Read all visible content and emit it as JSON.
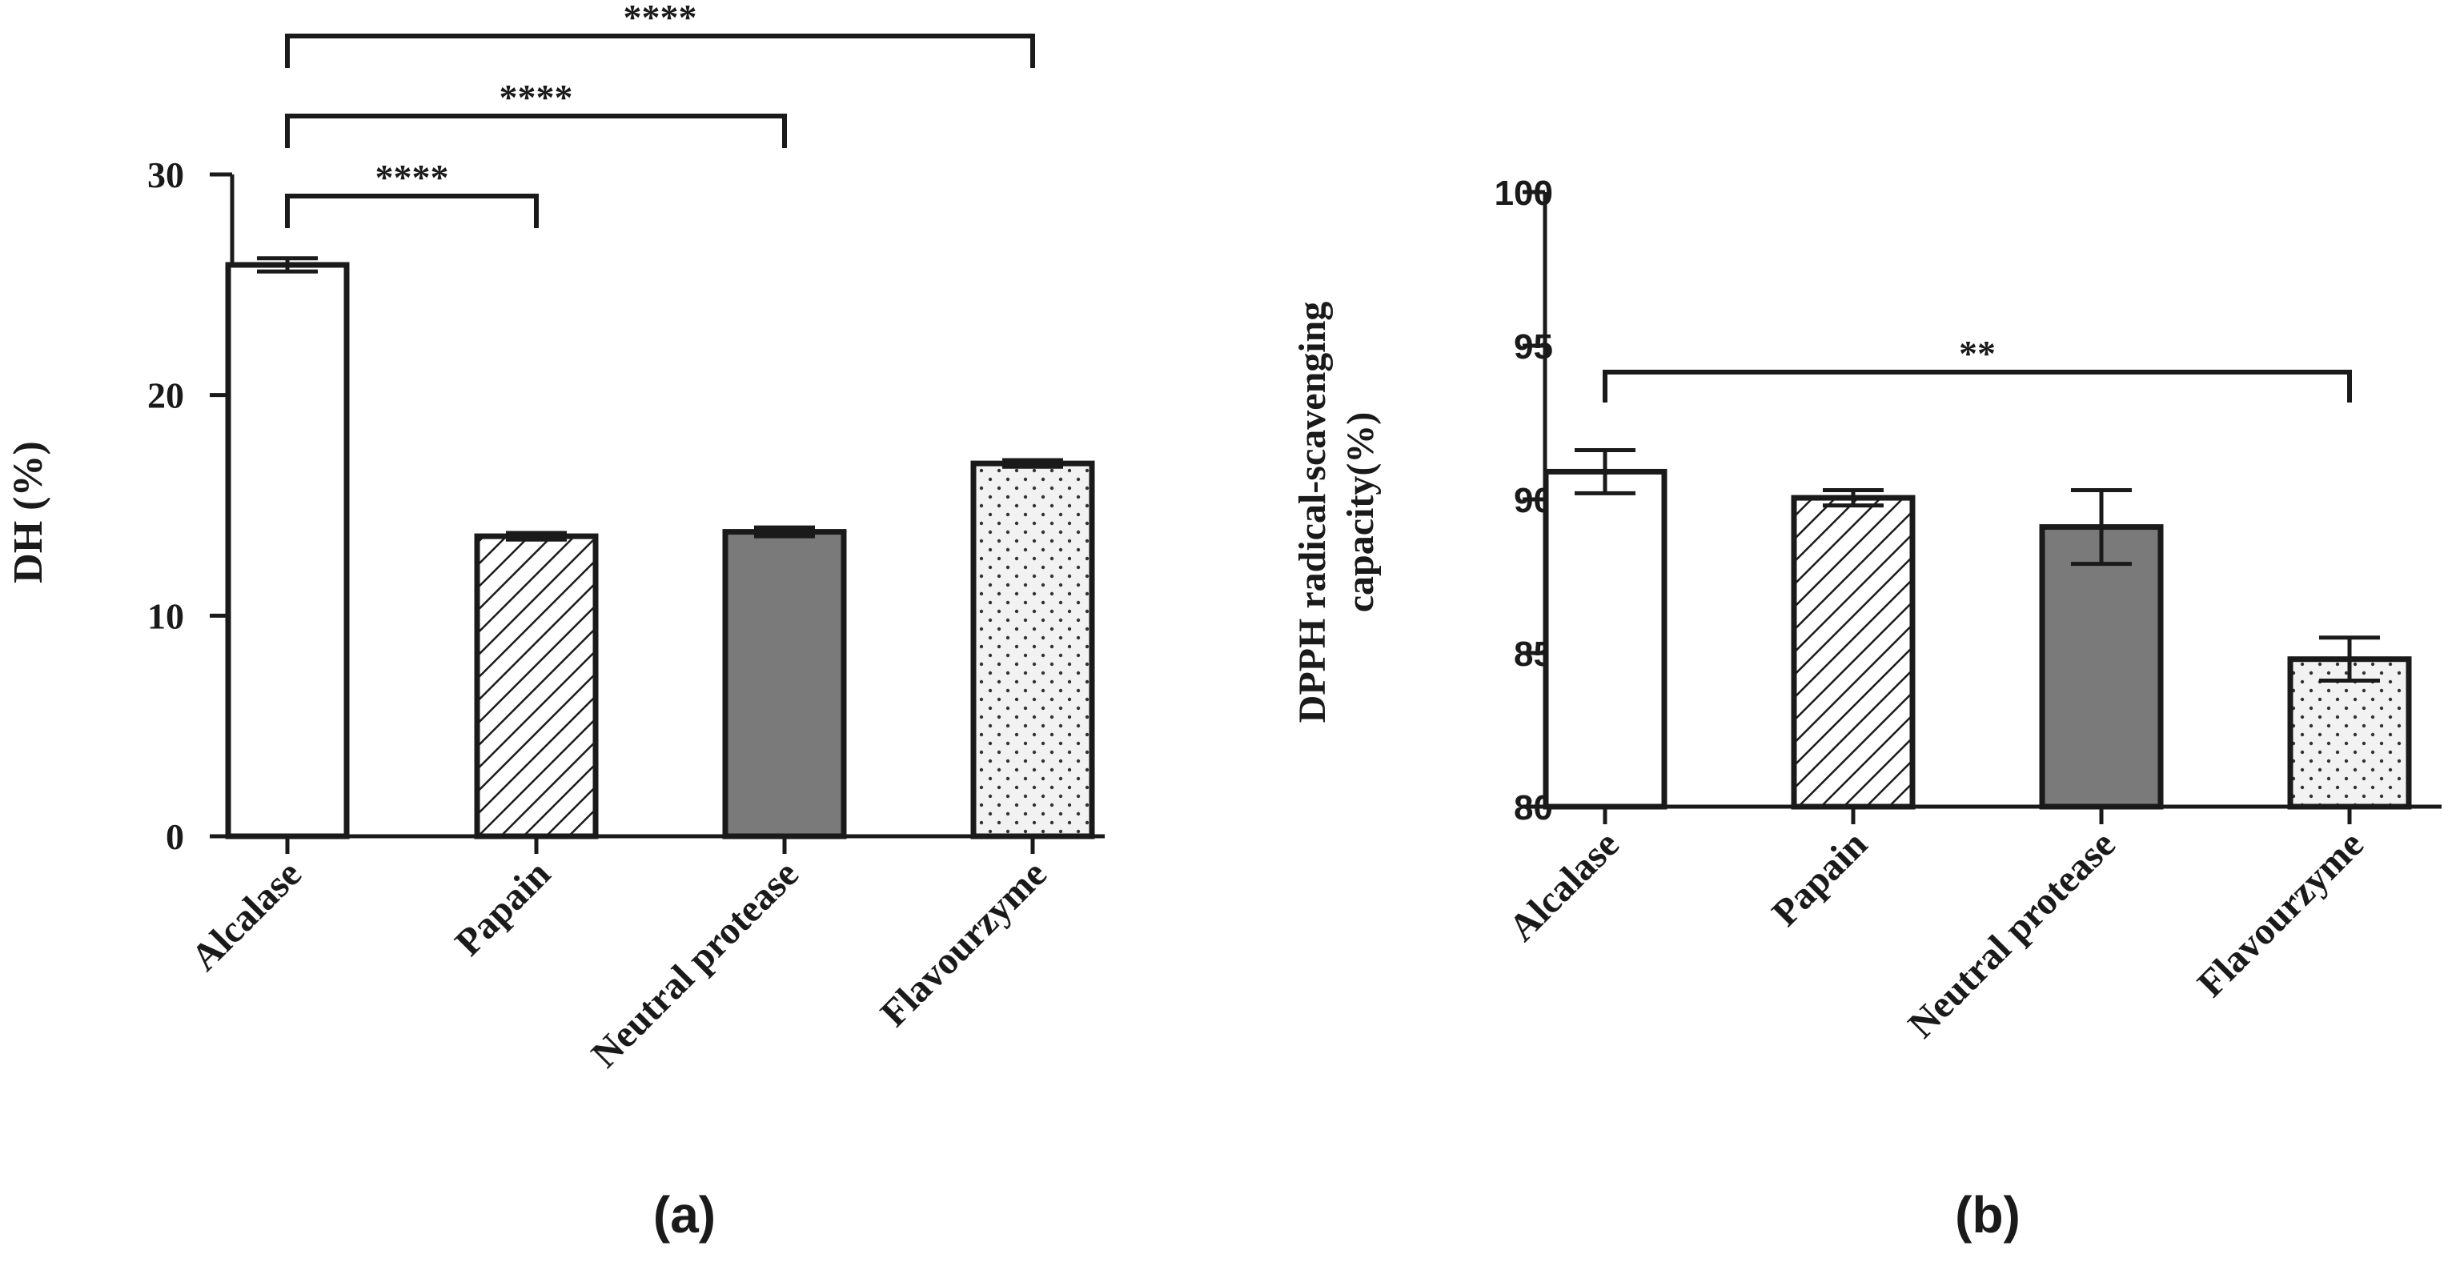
{
  "colors": {
    "axis": "#1a1a1a",
    "white_bar": "#ffffff",
    "gray_bar": "#7a7a7a",
    "hatch": "#1a1a1a",
    "dots": "#333333",
    "dots_bg": "#f2f2f2"
  },
  "chart_data": [
    {
      "type": "bar",
      "panel_label": "(a)",
      "title": "",
      "xlabel": "",
      "ylabel": "DH (%)",
      "categories": [
        "Alcalase",
        "Papain",
        "Neutral protease",
        "Flavourzyme"
      ],
      "values": [
        25.9,
        13.6,
        13.8,
        16.9
      ],
      "errors": [
        0.3,
        0.15,
        0.2,
        0.15
      ],
      "fills": [
        "white",
        "hatch",
        "gray",
        "dots"
      ],
      "ylim": [
        0,
        30
      ],
      "yticks": [
        0,
        10,
        20,
        30
      ],
      "ytick_labels": [
        "0",
        "10",
        "20",
        "30"
      ],
      "significance": [
        {
          "from": 0,
          "to": 1,
          "label": "****"
        },
        {
          "from": 0,
          "to": 2,
          "label": "****"
        },
        {
          "from": 0,
          "to": 3,
          "label": "****"
        }
      ]
    },
    {
      "type": "bar",
      "panel_label": "(b)",
      "title": "",
      "xlabel": "",
      "ylabel_lines": [
        "DPPH radical-scavenging",
        "capacity(%)"
      ],
      "categories": [
        "Alcalase",
        "Papain",
        "Neutral protease",
        "Flavourzyme"
      ],
      "values": [
        90.9,
        90.05,
        89.1,
        84.8
      ],
      "errors": [
        0.7,
        0.25,
        1.2,
        0.7
      ],
      "fills": [
        "white",
        "hatch",
        "gray",
        "dots"
      ],
      "ylim": [
        80,
        100
      ],
      "yticks": [
        80,
        85,
        90,
        95,
        100
      ],
      "ytick_labels": [
        "80",
        "85",
        "90",
        "95",
        "100"
      ],
      "significance": [
        {
          "from": 0,
          "to": 3,
          "label": "**"
        }
      ]
    }
  ]
}
